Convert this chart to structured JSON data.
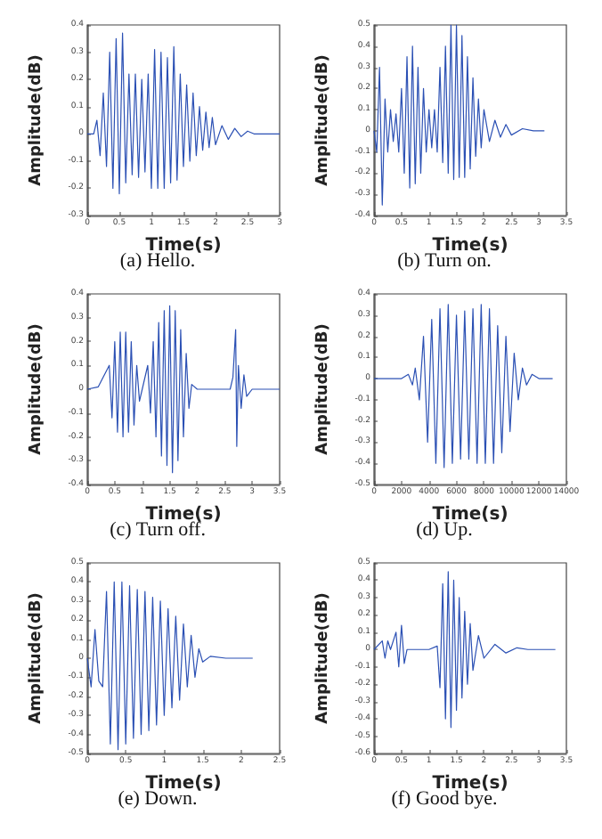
{
  "chart_data": [
    {
      "type": "line",
      "title": "(a) Hello.",
      "xlabel": "Time(s)",
      "ylabel": "Amplitude(dB)",
      "xlim": [
        0,
        3
      ],
      "xticks": [
        0,
        0.5,
        1,
        1.5,
        2,
        2.5,
        3
      ],
      "ylim": [
        -0.3,
        0.4
      ],
      "yticks": [
        -0.3,
        -0.2,
        -0.1,
        0,
        0.1,
        0.2,
        0.3,
        0.4
      ],
      "series": [
        {
          "color": "#2b50b4",
          "x": [
            0,
            0.1,
            0.15,
            0.2,
            0.25,
            0.3,
            0.35,
            0.4,
            0.45,
            0.5,
            0.55,
            0.6,
            0.65,
            0.7,
            0.75,
            0.8,
            0.85,
            0.9,
            0.95,
            1.0,
            1.05,
            1.1,
            1.15,
            1.2,
            1.25,
            1.3,
            1.35,
            1.4,
            1.45,
            1.5,
            1.55,
            1.6,
            1.65,
            1.7,
            1.75,
            1.8,
            1.85,
            1.9,
            1.95,
            2.0,
            2.1,
            2.2,
            2.3,
            2.4,
            2.5,
            2.6,
            2.8,
            3.0
          ],
          "values": [
            0,
            0,
            0.05,
            -0.08,
            0.15,
            -0.12,
            0.3,
            -0.2,
            0.35,
            -0.22,
            0.37,
            -0.18,
            0.22,
            -0.15,
            0.22,
            -0.16,
            0.2,
            -0.14,
            0.22,
            -0.2,
            0.31,
            -0.2,
            0.3,
            -0.2,
            0.28,
            -0.18,
            0.32,
            -0.17,
            0.22,
            -0.12,
            0.18,
            -0.1,
            0.15,
            -0.08,
            0.1,
            -0.06,
            0.08,
            -0.05,
            0.06,
            -0.04,
            0.03,
            -0.02,
            0.02,
            -0.01,
            0.01,
            0,
            0,
            0
          ]
        }
      ]
    },
    {
      "type": "line",
      "title": "(b) Turn on.",
      "xlabel": "Time(s)",
      "ylabel": "Amplitude(dB)",
      "xlim": [
        0,
        3.5
      ],
      "xticks": [
        0,
        0.5,
        1,
        1.5,
        2,
        2.5,
        3,
        3.5
      ],
      "ylim": [
        -0.4,
        0.5
      ],
      "yticks": [
        -0.4,
        -0.3,
        -0.2,
        -0.1,
        0,
        0.1,
        0.2,
        0.3,
        0.4,
        0.5
      ],
      "series": [
        {
          "color": "#2b50b4",
          "x": [
            0,
            0.05,
            0.1,
            0.15,
            0.2,
            0.25,
            0.3,
            0.35,
            0.4,
            0.45,
            0.5,
            0.55,
            0.6,
            0.65,
            0.7,
            0.75,
            0.8,
            0.85,
            0.9,
            0.95,
            1.0,
            1.05,
            1.1,
            1.15,
            1.2,
            1.25,
            1.3,
            1.35,
            1.4,
            1.45,
            1.5,
            1.55,
            1.6,
            1.65,
            1.7,
            1.75,
            1.8,
            1.85,
            1.9,
            1.95,
            2.0,
            2.1,
            2.2,
            2.3,
            2.4,
            2.5,
            2.7,
            2.9,
            3.1
          ],
          "values": [
            0,
            -0.1,
            0.3,
            -0.35,
            0.15,
            -0.1,
            0.1,
            -0.05,
            0.08,
            -0.1,
            0.2,
            -0.2,
            0.35,
            -0.27,
            0.4,
            -0.25,
            0.3,
            -0.2,
            0.2,
            -0.1,
            0.1,
            -0.08,
            0.1,
            -0.1,
            0.3,
            -0.15,
            0.4,
            -0.2,
            0.5,
            -0.23,
            0.5,
            -0.22,
            0.45,
            -0.22,
            0.35,
            -0.18,
            0.25,
            -0.12,
            0.15,
            -0.08,
            0.1,
            -0.05,
            0.05,
            -0.03,
            0.03,
            -0.02,
            0.01,
            0,
            0
          ]
        }
      ]
    },
    {
      "type": "line",
      "title": "(c) Turn off.",
      "xlabel": "Time(s)",
      "ylabel": "Amplitude(dB)",
      "xlim": [
        0,
        3.5
      ],
      "xticks": [
        0,
        0.5,
        1,
        1.5,
        2,
        2.5,
        3,
        3.5
      ],
      "ylim": [
        -0.4,
        0.4
      ],
      "yticks": [
        -0.4,
        -0.3,
        -0.2,
        -0.1,
        0,
        0.1,
        0.2,
        0.3,
        0.4
      ],
      "series": [
        {
          "color": "#2b50b4",
          "x": [
            0,
            0.2,
            0.4,
            0.45,
            0.5,
            0.55,
            0.6,
            0.65,
            0.7,
            0.75,
            0.8,
            0.85,
            0.9,
            0.95,
            1.0,
            1.1,
            1.15,
            1.2,
            1.25,
            1.3,
            1.35,
            1.4,
            1.45,
            1.5,
            1.55,
            1.6,
            1.65,
            1.7,
            1.75,
            1.8,
            1.85,
            1.9,
            2.0,
            2.2,
            2.4,
            2.6,
            2.65,
            2.7,
            2.72,
            2.75,
            2.8,
            2.85,
            2.9,
            3.0,
            3.5
          ],
          "values": [
            0,
            0.01,
            0.1,
            -0.12,
            0.2,
            -0.18,
            0.24,
            -0.2,
            0.24,
            -0.18,
            0.2,
            -0.15,
            0.1,
            -0.05,
            0,
            0.1,
            -0.1,
            0.2,
            -0.2,
            0.28,
            -0.28,
            0.33,
            -0.32,
            0.35,
            -0.35,
            0.33,
            -0.3,
            0.25,
            -0.2,
            0.15,
            -0.08,
            0.02,
            0,
            0,
            0,
            0,
            0.05,
            0.25,
            -0.24,
            0.1,
            -0.08,
            0.06,
            -0.03,
            0,
            0
          ]
        }
      ]
    },
    {
      "type": "line",
      "title": "(d) Up.",
      "xlabel": "Time(s)",
      "ylabel": "Amplitude(dB)",
      "xlim": [
        0,
        14000
      ],
      "xticks": [
        0,
        2000,
        4000,
        6000,
        8000,
        10000,
        12000,
        14000
      ],
      "ylim": [
        -0.5,
        0.4
      ],
      "yticks": [
        -0.5,
        -0.4,
        -0.3,
        -0.2,
        -0.1,
        0,
        0.1,
        0.2,
        0.3,
        0.4
      ],
      "series": [
        {
          "color": "#2b50b4",
          "x": [
            0,
            2000,
            2500,
            2800,
            3000,
            3300,
            3600,
            3900,
            4200,
            4500,
            4800,
            5100,
            5400,
            5700,
            6000,
            6300,
            6600,
            6900,
            7200,
            7500,
            7800,
            8100,
            8400,
            8700,
            9000,
            9300,
            9600,
            9900,
            10200,
            10500,
            10800,
            11100,
            11500,
            12000,
            13000
          ],
          "values": [
            0,
            0,
            0.02,
            -0.03,
            0.05,
            -0.1,
            0.2,
            -0.3,
            0.28,
            -0.4,
            0.33,
            -0.42,
            0.35,
            -0.4,
            0.3,
            -0.38,
            0.32,
            -0.38,
            0.33,
            -0.4,
            0.35,
            -0.4,
            0.33,
            -0.4,
            0.25,
            -0.35,
            0.2,
            -0.25,
            0.12,
            -0.1,
            0.05,
            -0.03,
            0.02,
            0,
            0
          ]
        }
      ]
    },
    {
      "type": "line",
      "title": "(e) Down.",
      "xlabel": "Time(s)",
      "ylabel": "Amplitude(dB)",
      "xlim": [
        0,
        2.5
      ],
      "xticks": [
        0,
        0.5,
        1,
        1.5,
        2,
        2.5
      ],
      "ylim": [
        -0.5,
        0.5
      ],
      "yticks": [
        -0.5,
        -0.4,
        -0.3,
        -0.2,
        -0.1,
        0,
        0.1,
        0.2,
        0.3,
        0.4,
        0.5
      ],
      "series": [
        {
          "color": "#2b50b4",
          "x": [
            0,
            0.05,
            0.1,
            0.15,
            0.2,
            0.25,
            0.3,
            0.35,
            0.4,
            0.45,
            0.5,
            0.55,
            0.6,
            0.65,
            0.7,
            0.75,
            0.8,
            0.85,
            0.9,
            0.95,
            1.0,
            1.05,
            1.1,
            1.15,
            1.2,
            1.25,
            1.3,
            1.35,
            1.4,
            1.45,
            1.5,
            1.6,
            1.8,
            2.0,
            2.15
          ],
          "values": [
            0,
            -0.15,
            0.15,
            -0.12,
            -0.15,
            0.35,
            -0.45,
            0.4,
            -0.48,
            0.4,
            -0.45,
            0.38,
            -0.42,
            0.36,
            -0.4,
            0.35,
            -0.38,
            0.32,
            -0.35,
            0.3,
            -0.3,
            0.26,
            -0.26,
            0.22,
            -0.22,
            0.18,
            -0.15,
            0.12,
            -0.1,
            0.05,
            -0.02,
            0.01,
            0,
            0,
            0
          ]
        }
      ]
    },
    {
      "type": "line",
      "title": "(f) Good bye.",
      "xlabel": "Time(s)",
      "ylabel": "Amplitude(dB)",
      "xlim": [
        0,
        3.5
      ],
      "xticks": [
        0,
        0.5,
        1,
        1.5,
        2,
        2.5,
        3,
        3.5
      ],
      "ylim": [
        -0.6,
        0.5
      ],
      "yticks": [
        -0.6,
        -0.5,
        -0.4,
        -0.3,
        -0.2,
        -0.1,
        0,
        0.1,
        0.2,
        0.3,
        0.4,
        0.5
      ],
      "series": [
        {
          "color": "#2b50b4",
          "x": [
            0,
            0.15,
            0.2,
            0.25,
            0.3,
            0.4,
            0.45,
            0.5,
            0.55,
            0.6,
            1.0,
            1.15,
            1.2,
            1.25,
            1.3,
            1.35,
            1.4,
            1.45,
            1.5,
            1.55,
            1.6,
            1.65,
            1.7,
            1.75,
            1.8,
            1.9,
            2.0,
            2.2,
            2.4,
            2.6,
            2.8,
            3.3
          ],
          "values": [
            0,
            0.05,
            -0.05,
            0.05,
            0,
            0.1,
            -0.1,
            0.14,
            -0.08,
            0,
            0,
            0.02,
            -0.22,
            0.38,
            -0.4,
            0.45,
            -0.45,
            0.4,
            -0.35,
            0.3,
            -0.28,
            0.22,
            -0.2,
            0.15,
            -0.12,
            0.08,
            -0.05,
            0.03,
            -0.02,
            0.01,
            0,
            0
          ]
        }
      ]
    }
  ]
}
